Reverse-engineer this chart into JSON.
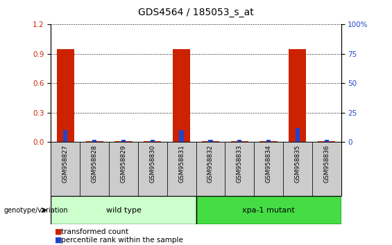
{
  "title": "GDS4564 / 185053_s_at",
  "samples": [
    "GSM958827",
    "GSM958828",
    "GSM958829",
    "GSM958830",
    "GSM958831",
    "GSM958832",
    "GSM958833",
    "GSM958834",
    "GSM958835",
    "GSM958836"
  ],
  "transformed_count": [
    0.95,
    0.01,
    0.01,
    0.01,
    0.95,
    0.01,
    0.01,
    0.01,
    0.95,
    0.01
  ],
  "percentile_rank_right": [
    10,
    2,
    2,
    2,
    10,
    2,
    2,
    2,
    12,
    2
  ],
  "ylim_left": [
    0,
    1.2
  ],
  "ylim_right": [
    0,
    100
  ],
  "yticks_left": [
    0,
    0.3,
    0.6,
    0.9,
    1.2
  ],
  "yticks_right": [
    0,
    25,
    50,
    75,
    100
  ],
  "bar_color_red": "#cc2200",
  "bar_color_blue": "#2244cc",
  "group_label": "genotype/variation",
  "wt_color": "#ccffcc",
  "xpa_color": "#44dd44",
  "legend_items": [
    {
      "color": "#cc2200",
      "label": "transformed count"
    },
    {
      "color": "#2244cc",
      "label": "percentile rank within the sample"
    }
  ],
  "background_color": "#ffffff",
  "tick_bg_color": "#cccccc",
  "title_fontsize": 10,
  "label_fontsize": 6.5,
  "axis_tick_fontsize": 7.5,
  "group_fontsize": 8,
  "legend_fontsize": 7.5
}
